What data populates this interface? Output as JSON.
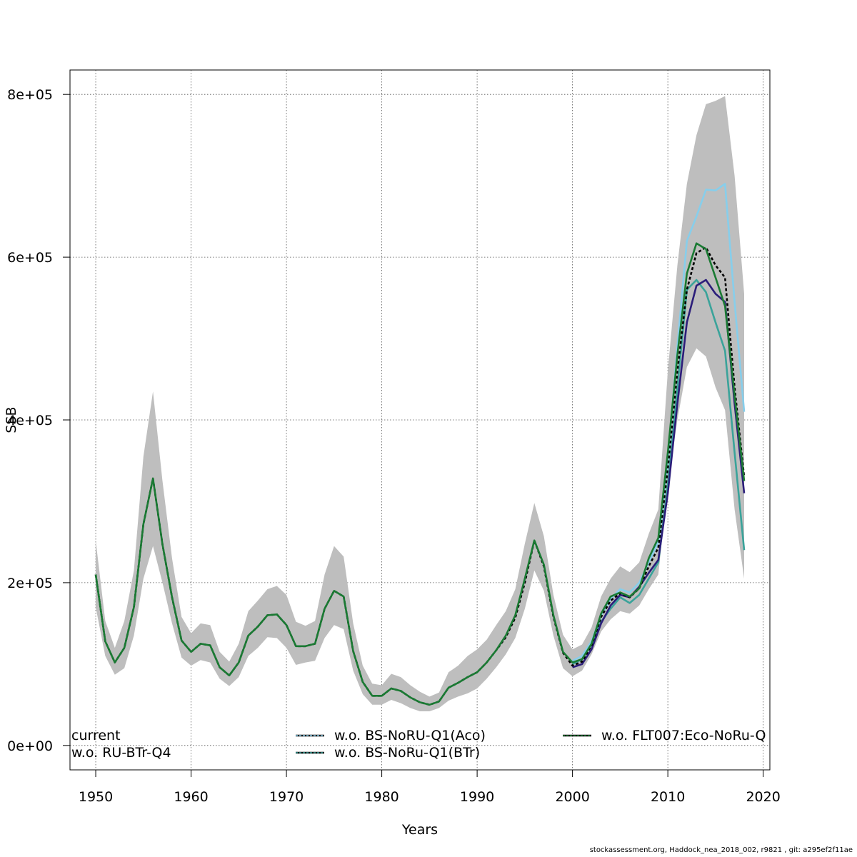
{
  "chart_data": {
    "type": "line",
    "xlabel": "Years",
    "ylabel": "SSB",
    "xlim": [
      1947.3,
      2020.7
    ],
    "ylim": [
      -30000,
      830000
    ],
    "x_ticks": [
      1950,
      1960,
      1970,
      1980,
      1990,
      2000,
      2010,
      2020
    ],
    "y_ticks": [
      0,
      200000,
      400000,
      600000,
      800000
    ],
    "y_tick_labels": [
      "0e+00",
      "2e+05",
      "4e+05",
      "6e+05",
      "8e+05"
    ],
    "grid": true,
    "legend_placement": "bottom",
    "colors": {
      "band": "#bebebe",
      "current": "#000000",
      "bs_noru_q1_aco": "#87ceeb",
      "bs_noru_q1_btr": "#3aa39a",
      "ru_btr_q4": "#2b1d7a",
      "flt007": "#1a7a33"
    },
    "confidence_band": {
      "x": [
        1950,
        1951,
        1952,
        1953,
        1954,
        1955,
        1956,
        1957,
        1958,
        1959,
        1960,
        1961,
        1962,
        1963,
        1964,
        1965,
        1966,
        1967,
        1968,
        1969,
        1970,
        1971,
        1972,
        1973,
        1974,
        1975,
        1976,
        1977,
        1978,
        1979,
        1980,
        1981,
        1982,
        1983,
        1984,
        1985,
        1986,
        1987,
        1988,
        1989,
        1990,
        1991,
        1992,
        1993,
        1994,
        1995,
        1996,
        1997,
        1998,
        1999,
        2000,
        2001,
        2002,
        2003,
        2004,
        2005,
        2006,
        2007,
        2008,
        2009,
        2010,
        2011,
        2012,
        2013,
        2014,
        2015,
        2016,
        2017,
        2018
      ],
      "lower": [
        170000,
        110000,
        87000,
        95000,
        135000,
        205000,
        245000,
        200000,
        150000,
        108000,
        98000,
        105000,
        102000,
        82000,
        73000,
        84000,
        110000,
        120000,
        133000,
        132000,
        120000,
        99000,
        102000,
        104000,
        132000,
        148000,
        143000,
        92000,
        63000,
        50000,
        50000,
        56000,
        52000,
        46000,
        42000,
        42000,
        46000,
        55000,
        60000,
        64000,
        70000,
        82000,
        96000,
        112000,
        132000,
        168000,
        215000,
        190000,
        135000,
        95000,
        85000,
        92000,
        112000,
        140000,
        155000,
        165000,
        162000,
        172000,
        192000,
        210000,
        320000,
        400000,
        465000,
        488000,
        478000,
        440000,
        412000,
        290000,
        205000
      ],
      "upper": [
        252000,
        153000,
        120000,
        153000,
        215000,
        355000,
        435000,
        325000,
        230000,
        158000,
        138000,
        150000,
        148000,
        115000,
        103000,
        125000,
        165000,
        178000,
        192000,
        196000,
        185000,
        152000,
        147000,
        153000,
        210000,
        245000,
        232000,
        150000,
        98000,
        76000,
        74000,
        88000,
        84000,
        74000,
        66000,
        60000,
        65000,
        90000,
        98000,
        110000,
        118000,
        130000,
        148000,
        165000,
        192000,
        248000,
        298000,
        257000,
        185000,
        136000,
        118000,
        124000,
        145000,
        183000,
        205000,
        220000,
        213000,
        225000,
        260000,
        290000,
        460000,
        590000,
        690000,
        750000,
        788000,
        792000,
        798000,
        700000,
        555000
      ]
    },
    "series": [
      {
        "name": "current",
        "key": "current",
        "dash": "4,3",
        "x": [
          1950,
          1951,
          1952,
          1953,
          1954,
          1955,
          1956,
          1957,
          1958,
          1959,
          1960,
          1961,
          1962,
          1963,
          1964,
          1965,
          1966,
          1967,
          1968,
          1969,
          1970,
          1971,
          1972,
          1973,
          1974,
          1975,
          1976,
          1977,
          1978,
          1979,
          1980,
          1981,
          1982,
          1983,
          1984,
          1985,
          1986,
          1987,
          1988,
          1989,
          1990,
          1991,
          1992,
          1993,
          1994,
          1995,
          1996,
          1997,
          1998,
          1999,
          2000,
          2001,
          2002,
          2003,
          2004,
          2005,
          2006,
          2007,
          2008,
          2009,
          2010,
          2011,
          2012,
          2013,
          2014,
          2015,
          2016,
          2017,
          2018
        ],
        "values": [
          210000,
          128000,
          102000,
          120000,
          170000,
          272000,
          328000,
          247000,
          182000,
          129000,
          115000,
          125000,
          123000,
          96000,
          86000,
          102000,
          135000,
          146000,
          160000,
          161000,
          148000,
          122000,
          122000,
          125000,
          168000,
          190000,
          183000,
          116000,
          78000,
          61000,
          61000,
          70000,
          67000,
          59000,
          53000,
          50000,
          54000,
          71000,
          77000,
          84000,
          90000,
          102000,
          117000,
          133000,
          157000,
          200000,
          252000,
          220000,
          158000,
          114000,
          98000,
          103000,
          123000,
          158000,
          178000,
          187000,
          182000,
          193000,
          220000,
          243000,
          340000,
          460000,
          560000,
          605000,
          612000,
          590000,
          575000,
          440000,
          330000
        ]
      },
      {
        "name": "w.o. RU-BTr-Q4",
        "key": "ru_btr_q4",
        "dash": "",
        "x": [
          2000,
          2001,
          2002,
          2003,
          2004,
          2005,
          2006,
          2007,
          2008,
          2009,
          2010,
          2011,
          2012,
          2013,
          2014,
          2015,
          2016,
          2017,
          2018
        ],
        "values": [
          96000,
          100000,
          118000,
          150000,
          172000,
          185000,
          182000,
          195000,
          212000,
          228000,
          310000,
          420000,
          520000,
          565000,
          572000,
          555000,
          545000,
          420000,
          310000
        ]
      },
      {
        "name": "w.o. BS-NoRU-Q1(Aco)",
        "key": "bs_noru_q1_aco",
        "dash": "",
        "x": [
          2000,
          2001,
          2002,
          2003,
          2004,
          2005,
          2006,
          2007,
          2008,
          2009,
          2010,
          2011,
          2012,
          2013,
          2014,
          2015,
          2016,
          2017,
          2018
        ],
        "values": [
          104000,
          110000,
          128000,
          160000,
          180000,
          192000,
          188000,
          200000,
          225000,
          250000,
          350000,
          490000,
          620000,
          650000,
          683000,
          682000,
          690000,
          545000,
          410000
        ]
      },
      {
        "name": "w.o. BS-NoRu-Q1(BTr)",
        "key": "bs_noru_q1_btr",
        "dash": "",
        "x": [
          2000,
          2001,
          2002,
          2003,
          2004,
          2005,
          2006,
          2007,
          2008,
          2009,
          2010,
          2011,
          2012,
          2013,
          2014,
          2015,
          2016,
          2017,
          2018
        ],
        "values": [
          100000,
          106000,
          124000,
          152000,
          168000,
          182000,
          175000,
          185000,
          205000,
          225000,
          320000,
          440000,
          560000,
          572000,
          557000,
          520000,
          485000,
          360000,
          240000
        ]
      },
      {
        "name": "w.o. FLT007:Eco-NoRu-Q",
        "key": "flt007",
        "dash": "",
        "x": [
          1950,
          1951,
          1952,
          1953,
          1954,
          1955,
          1956,
          1957,
          1958,
          1959,
          1960,
          1961,
          1962,
          1963,
          1964,
          1965,
          1966,
          1967,
          1968,
          1969,
          1970,
          1971,
          1972,
          1973,
          1974,
          1975,
          1976,
          1977,
          1978,
          1979,
          1980,
          1981,
          1982,
          1983,
          1984,
          1985,
          1986,
          1987,
          1988,
          1989,
          1990,
          1991,
          1992,
          1993,
          1994,
          1995,
          1996,
          1997,
          1998,
          1999,
          2000,
          2001,
          2002,
          2003,
          2004,
          2005,
          2006,
          2007,
          2008,
          2009,
          2010,
          2011,
          2012,
          2013,
          2014,
          2015,
          2016,
          2017,
          2018
        ],
        "values": [
          210000,
          128000,
          102000,
          120000,
          170000,
          272000,
          328000,
          247000,
          182000,
          129000,
          115000,
          125000,
          123000,
          96000,
          86000,
          102000,
          135000,
          146000,
          160000,
          161000,
          148000,
          122000,
          122000,
          125000,
          168000,
          190000,
          183000,
          116000,
          78000,
          61000,
          61000,
          70000,
          67000,
          59000,
          53000,
          50000,
          54000,
          71000,
          77000,
          84000,
          90000,
          102000,
          117000,
          135000,
          160000,
          205000,
          252000,
          222000,
          160000,
          115000,
          102000,
          106000,
          125000,
          162000,
          183000,
          188000,
          183000,
          193000,
          230000,
          255000,
          360000,
          480000,
          580000,
          617000,
          610000,
          575000,
          540000,
          430000,
          325000
        ]
      }
    ],
    "legend": {
      "col1": [
        "current",
        "w.o. RU-BTr-Q4"
      ],
      "col2": [
        "w.o. BS-NoRU-Q1(Aco)",
        "w.o. BS-NoRu-Q1(BTr)"
      ],
      "col3": [
        "w.o. FLT007:Eco-NoRu-Q"
      ]
    }
  },
  "footer": {
    "credit": "stockassessment.org, Haddock_nea_2018_002, r9821 , git: a295ef2f11ae"
  }
}
